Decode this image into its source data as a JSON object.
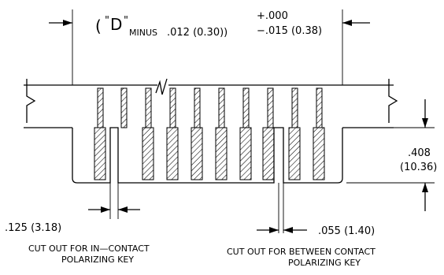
{
  "dimension_top": {
    "open_paren": "(",
    "quote_left": "\"",
    "letter": "D",
    "quote_right": "\"",
    "minus_word": "MINUS",
    "value": ".012 (0.30))",
    "tol_plus": "+.000",
    "tol_minus": "−.015 (0.38)"
  },
  "dimension_right": {
    "inch": ".408",
    "mm": "(10.36)"
  },
  "dimension_left_slot": {
    "value": ".125 (3.18)",
    "caption_line1": "CUT OUT FOR IN—CONTACT",
    "caption_line2": "POLARIZING KEY"
  },
  "dimension_right_slot": {
    "value": ".055 (1.40)",
    "caption_line1": "CUT OUT FOR BETWEEN CONTACT",
    "caption_line2": "POLARIZING KEY"
  }
}
